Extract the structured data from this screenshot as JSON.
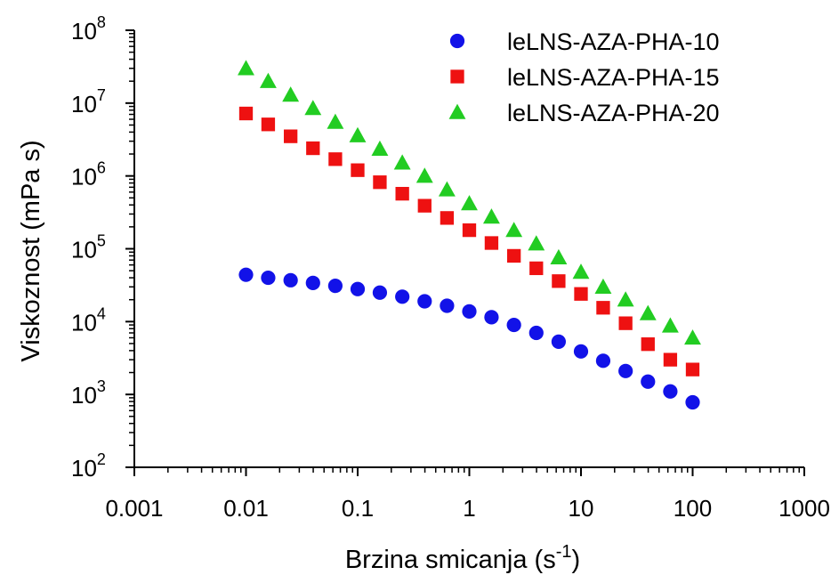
{
  "chart_data": {
    "type": "scatter",
    "xscale": "log",
    "yscale": "log",
    "xlim": [
      0.001,
      1000
    ],
    "ylim": [
      100,
      100000000
    ],
    "xlabel": "Brzina smicanja",
    "xlabel_unit_base": "s",
    "xlabel_unit_exp": "-1",
    "ylabel": "Viskoznost (mPa s)",
    "x_ticks": [
      "0.001",
      "0.01",
      "0.1",
      "1",
      "10",
      "100",
      "1000"
    ],
    "y_ticks": [
      {
        "base": "10",
        "exp": "2"
      },
      {
        "base": "10",
        "exp": "3"
      },
      {
        "base": "10",
        "exp": "4"
      },
      {
        "base": "10",
        "exp": "5"
      },
      {
        "base": "10",
        "exp": "6"
      },
      {
        "base": "10",
        "exp": "7"
      },
      {
        "base": "10",
        "exp": "8"
      }
    ],
    "legend_position": "top-right",
    "grid": false,
    "series": [
      {
        "name": "leLNS-AZA-PHA-10",
        "marker": "circle",
        "color": "#1212e8",
        "x": [
          0.01,
          0.0158,
          0.0251,
          0.0398,
          0.0631,
          0.1,
          0.158,
          0.251,
          0.398,
          0.631,
          1,
          1.58,
          2.51,
          3.98,
          6.31,
          10,
          15.8,
          25.1,
          39.8,
          63.1,
          100
        ],
        "y": [
          44000,
          40000,
          37000,
          34000,
          31000,
          28000,
          25000,
          22000,
          19000,
          16500,
          13800,
          11500,
          9000,
          7000,
          5300,
          3900,
          2900,
          2100,
          1500,
          1100,
          780
        ]
      },
      {
        "name": "leLNS-AZA-PHA-15",
        "marker": "square",
        "color": "#ee1111",
        "x": [
          0.01,
          0.0158,
          0.0251,
          0.0398,
          0.0631,
          0.1,
          0.158,
          0.251,
          0.398,
          0.631,
          1,
          1.58,
          2.51,
          3.98,
          6.31,
          10,
          15.8,
          25.1,
          39.8,
          63.1,
          100
        ],
        "y": [
          7200000,
          5100000,
          3500000,
          2400000,
          1700000,
          1200000,
          820000,
          570000,
          390000,
          265000,
          180000,
          120000,
          80000,
          54000,
          36000,
          24000,
          15500,
          9500,
          4900,
          3000,
          2200
        ]
      },
      {
        "name": "leLNS-AZA-PHA-20",
        "marker": "triangle",
        "color": "#22cc22",
        "x": [
          0.01,
          0.0158,
          0.0251,
          0.0398,
          0.0631,
          0.1,
          0.158,
          0.251,
          0.398,
          0.631,
          1,
          1.58,
          2.51,
          3.98,
          6.31,
          10,
          15.8,
          25.1,
          39.8,
          63.1,
          100
        ],
        "y": [
          30000000,
          20000000,
          13000000,
          8500000,
          5500000,
          3600000,
          2350000,
          1520000,
          1000000,
          650000,
          420000,
          275000,
          180000,
          118000,
          76000,
          48000,
          30000,
          20000,
          13000,
          8800,
          6000
        ]
      }
    ]
  }
}
